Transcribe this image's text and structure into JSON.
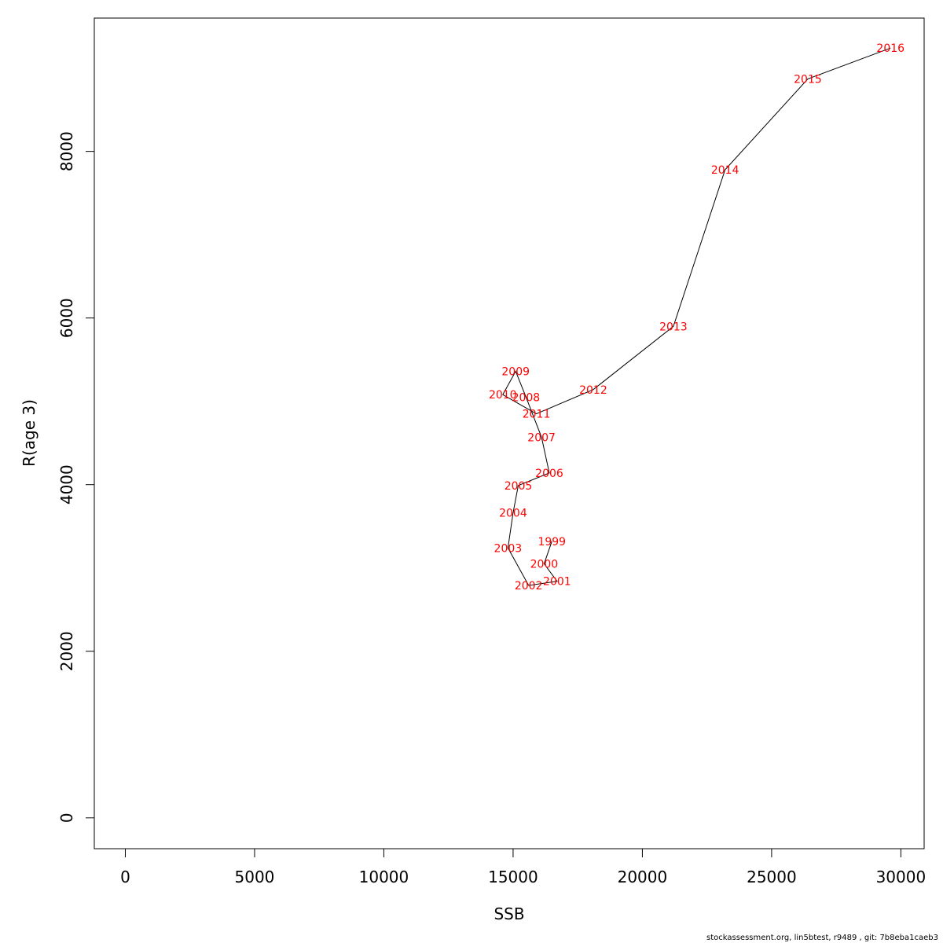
{
  "chart_data": {
    "type": "line",
    "xlabel": "SSB",
    "ylabel": "R(age 3)",
    "xlim": [
      -1200,
      30900
    ],
    "ylim": [
      -370,
      9600
    ],
    "x_ticks": [
      0,
      5000,
      10000,
      15000,
      20000,
      25000,
      30000
    ],
    "y_ticks": [
      0,
      2000,
      4000,
      6000,
      8000
    ],
    "line_color": "#000000",
    "label_color": "#ff0000",
    "grid": false,
    "points": [
      {
        "year": "1999",
        "x": 16500,
        "y": 3320
      },
      {
        "year": "2000",
        "x": 16200,
        "y": 3050
      },
      {
        "year": "2001",
        "x": 16700,
        "y": 2840
      },
      {
        "year": "2002",
        "x": 15600,
        "y": 2790
      },
      {
        "year": "2003",
        "x": 14800,
        "y": 3240
      },
      {
        "year": "2004",
        "x": 15000,
        "y": 3660
      },
      {
        "year": "2005",
        "x": 15200,
        "y": 3990
      },
      {
        "year": "2006",
        "x": 16400,
        "y": 4140
      },
      {
        "year": "2007",
        "x": 16100,
        "y": 4570
      },
      {
        "year": "2008",
        "x": 15500,
        "y": 5050
      },
      {
        "year": "2009",
        "x": 15100,
        "y": 5360
      },
      {
        "year": "2010",
        "x": 14600,
        "y": 5080
      },
      {
        "year": "2011",
        "x": 15900,
        "y": 4850
      },
      {
        "year": "2012",
        "x": 18100,
        "y": 5140
      },
      {
        "year": "2013",
        "x": 21200,
        "y": 5900
      },
      {
        "year": "2014",
        "x": 23200,
        "y": 7780
      },
      {
        "year": "2015",
        "x": 26400,
        "y": 8870
      },
      {
        "year": "2016",
        "x": 29600,
        "y": 9240
      }
    ]
  },
  "footer": {
    "text": "stockassessment.org, lin5btest, r9489 , git: 7b8eba1caeb3"
  }
}
